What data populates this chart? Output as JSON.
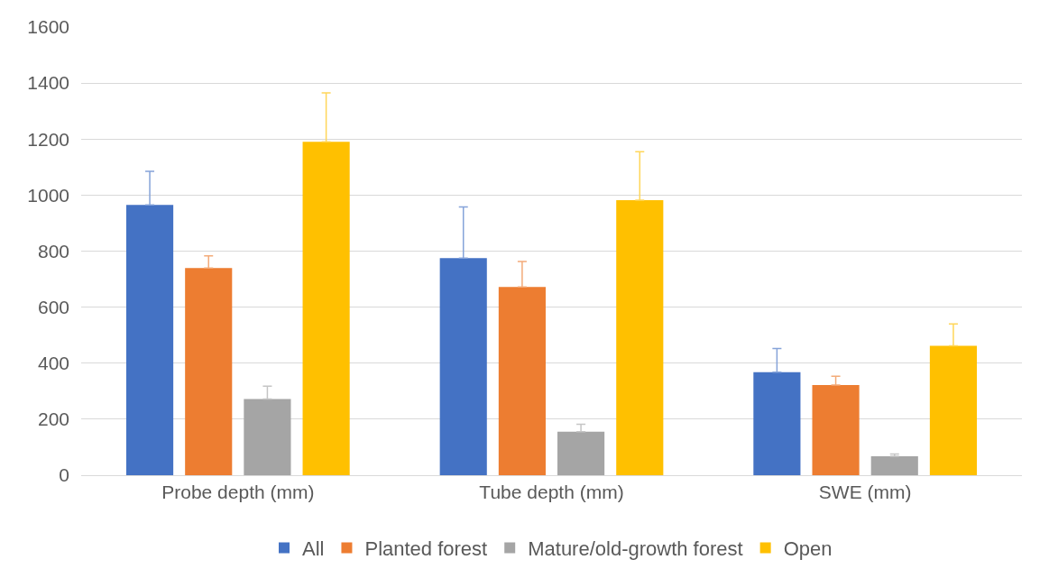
{
  "chart_data": {
    "type": "bar",
    "categories": [
      "Probe depth (mm)",
      "Tube depth (mm)",
      "SWE (mm)"
    ],
    "series": [
      {
        "name": "All",
        "color": "#4472c4",
        "values": [
          965,
          775,
          368
        ],
        "errors": [
          [
            965,
            1085
          ],
          [
            775,
            958
          ],
          [
            368,
            452
          ]
        ]
      },
      {
        "name": "Planted forest",
        "color": "#ed7d31",
        "values": [
          740,
          672,
          322
        ],
        "errors": [
          [
            740,
            783
          ],
          [
            672,
            763
          ],
          [
            322,
            353
          ]
        ]
      },
      {
        "name": "Mature/old-growth forest",
        "color": "#a5a5a5",
        "values": [
          272,
          155,
          68
        ],
        "errors": [
          [
            272,
            318
          ],
          [
            155,
            182
          ],
          [
            68,
            76
          ]
        ]
      },
      {
        "name": "Open",
        "color": "#ffc000",
        "values": [
          1190,
          982,
          462
        ],
        "errors": [
          [
            1190,
            1365
          ],
          [
            982,
            1155
          ],
          [
            462,
            540
          ]
        ]
      }
    ],
    "ylim": [
      0,
      1600
    ],
    "yticks": [
      0,
      200,
      400,
      600,
      800,
      1000,
      1200,
      1400,
      1600
    ],
    "grid": "y",
    "legend": "bottom"
  }
}
